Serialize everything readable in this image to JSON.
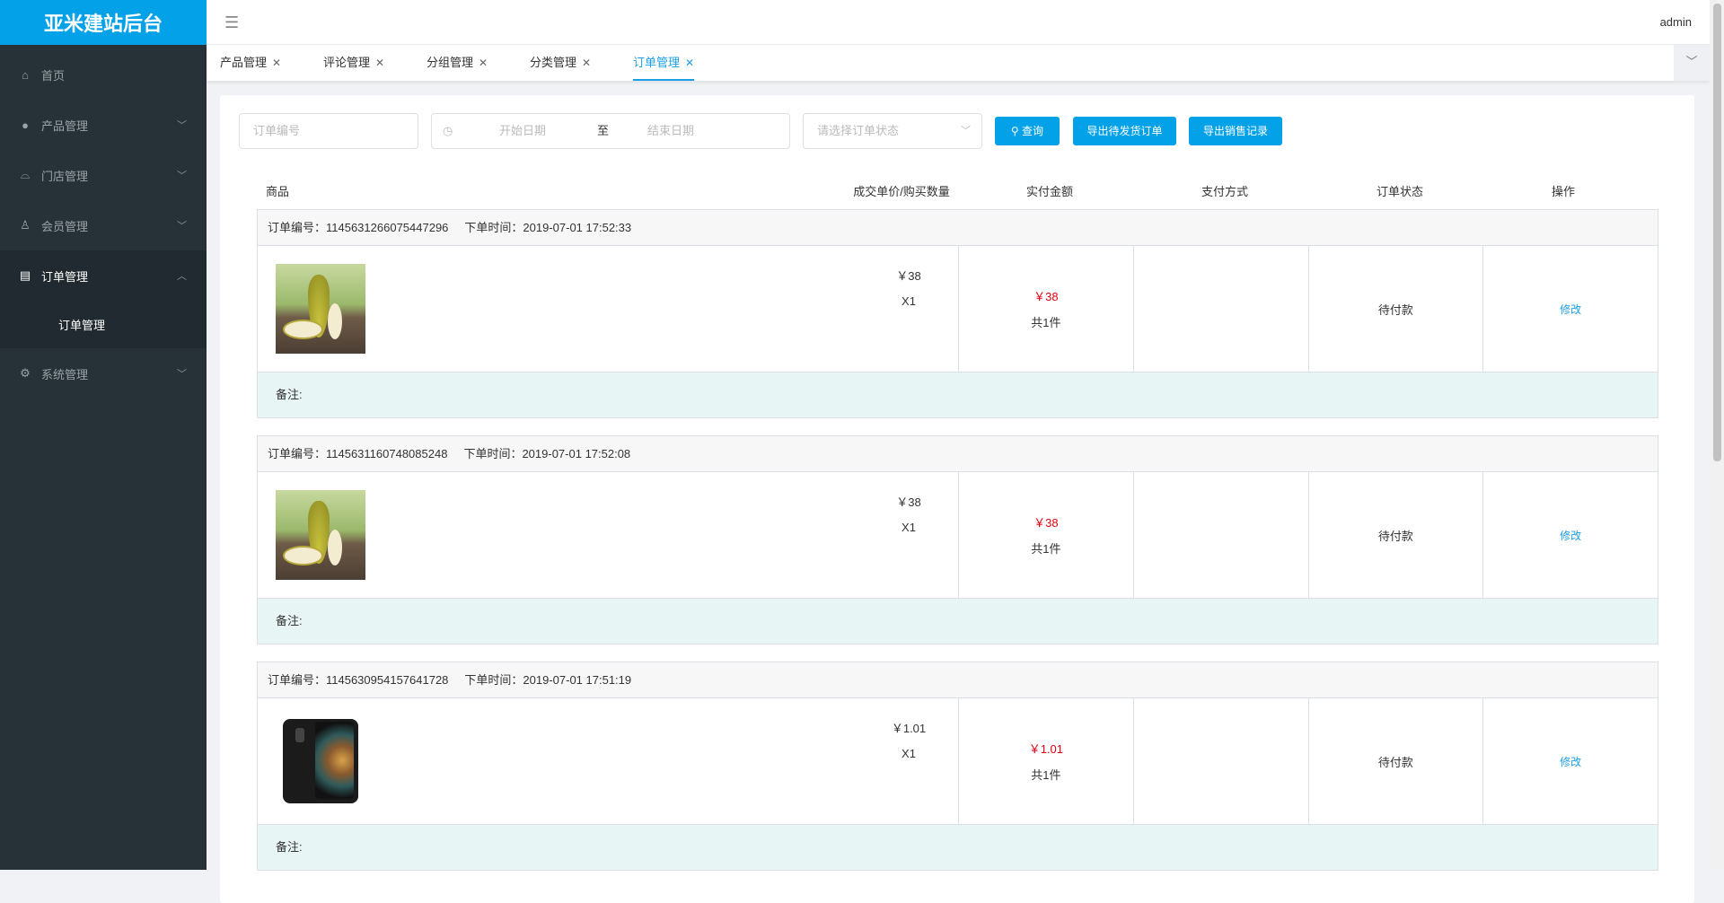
{
  "app": {
    "title": "亚米建站后台",
    "user": "admin"
  },
  "sidebar": {
    "items": [
      {
        "label": "首页",
        "icon": "home-icon"
      },
      {
        "label": "产品管理",
        "icon": "user-icon"
      },
      {
        "label": "门店管理",
        "icon": "store-icon"
      },
      {
        "label": "会员管理",
        "icon": "award-icon"
      },
      {
        "label": "订单管理",
        "icon": "document-icon",
        "expanded": true,
        "children": [
          {
            "label": "订单管理",
            "active": true
          }
        ]
      },
      {
        "label": "系统管理",
        "icon": "gear-icon"
      }
    ]
  },
  "tabs": [
    {
      "label": "产品管理"
    },
    {
      "label": "评论管理"
    },
    {
      "label": "分组管理"
    },
    {
      "label": "分类管理"
    },
    {
      "label": "订单管理",
      "active": true
    }
  ],
  "filters": {
    "order_no_placeholder": "订单编号",
    "start_placeholder": "开始日期",
    "range_sep": "至",
    "end_placeholder": "结束日期",
    "status_placeholder": "请选择订单状态",
    "query": "查询",
    "export_pending": "导出待发货订单",
    "export_sales": "导出销售记录"
  },
  "columns": [
    "商品",
    "成交单价/购买数量",
    "实付金额",
    "支付方式",
    "订单状态",
    "操作"
  ],
  "orders": [
    {
      "no_label": "订单编号：1145631266075447296",
      "time_label": "下单时间：2019-07-01 17:52:33",
      "image": "pear",
      "price": "￥38",
      "qty": "X1",
      "paid": "￥38",
      "count": "共1件",
      "payment": "",
      "status": "待付款",
      "action": "修改",
      "remark": "备注:"
    },
    {
      "no_label": "订单编号：1145631160748085248",
      "time_label": "下单时间：2019-07-01 17:52:08",
      "image": "pear",
      "price": "￥38",
      "qty": "X1",
      "paid": "￥38",
      "count": "共1件",
      "payment": "",
      "status": "待付款",
      "action": "修改",
      "remark": "备注:"
    },
    {
      "no_label": "订单编号：1145630954157641728",
      "time_label": "下单时间：2019-07-01 17:51:19",
      "image": "phone",
      "price": "￥1.01",
      "qty": "X1",
      "paid": "￥1.01",
      "count": "共1件",
      "payment": "",
      "status": "待付款",
      "action": "修改",
      "remark": "备注:"
    }
  ],
  "colors": {
    "brand": "#03a1e8",
    "sidebar": "#263238",
    "price_red": "#e60012",
    "remark_bg": "#e8f5f5"
  }
}
